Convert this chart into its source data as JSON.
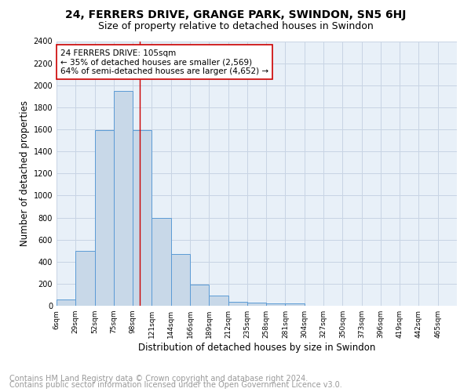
{
  "title": "24, FERRERS DRIVE, GRANGE PARK, SWINDON, SN5 6HJ",
  "subtitle": "Size of property relative to detached houses in Swindon",
  "xlabel": "Distribution of detached houses by size in Swindon",
  "ylabel": "Number of detached properties",
  "bar_values": [
    60,
    500,
    1590,
    1950,
    1590,
    800,
    470,
    195,
    95,
    35,
    30,
    20,
    20,
    0,
    0,
    0,
    0,
    0,
    0,
    0,
    0
  ],
  "bar_labels": [
    "6sqm",
    "29sqm",
    "52sqm",
    "75sqm",
    "98sqm",
    "121sqm",
    "144sqm",
    "166sqm",
    "189sqm",
    "212sqm",
    "235sqm",
    "258sqm",
    "281sqm",
    "304sqm",
    "327sqm",
    "350sqm",
    "373sqm",
    "396sqm",
    "419sqm",
    "442sqm",
    "465sqm"
  ],
  "bar_color": "#c8d8e8",
  "bar_edge_color": "#5b9bd5",
  "red_line_color": "#cc0000",
  "red_line_x": 4.35,
  "annotation_text": "24 FERRERS DRIVE: 105sqm\n← 35% of detached houses are smaller (2,569)\n64% of semi-detached houses are larger (4,652) →",
  "annotation_box_color": "white",
  "annotation_box_edge_color": "#cc0000",
  "ylim": [
    0,
    2400
  ],
  "yticks": [
    0,
    200,
    400,
    600,
    800,
    1000,
    1200,
    1400,
    1600,
    1800,
    2000,
    2200,
    2400
  ],
  "grid_color": "#c8d4e4",
  "bg_color": "#e8f0f8",
  "footer_line1": "Contains HM Land Registry data © Crown copyright and database right 2024.",
  "footer_line2": "Contains public sector information licensed under the Open Government Licence v3.0.",
  "title_fontsize": 10,
  "subtitle_fontsize": 9,
  "xlabel_fontsize": 8.5,
  "ylabel_fontsize": 8.5,
  "footer_fontsize": 7,
  "annot_fontsize": 7.5
}
